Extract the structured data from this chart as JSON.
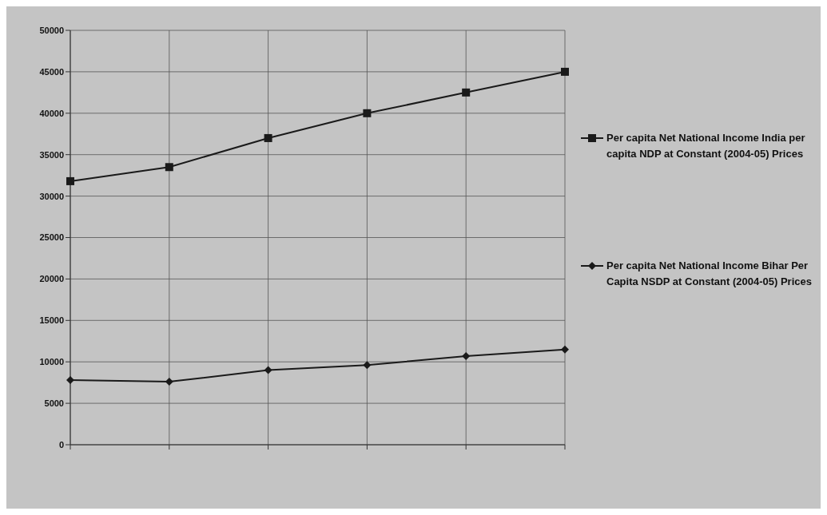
{
  "chart_data": {
    "type": "line",
    "categories": [
      null,
      null,
      null,
      null,
      null,
      null
    ],
    "series": [
      {
        "name": "Per capita Net National Income India per capita NDP at Constant (2004-05) Prices",
        "color": "#1a1a1a",
        "marker": "square",
        "values": [
          31800,
          33500,
          37000,
          40000,
          42500,
          45000
        ]
      },
      {
        "name": "Per capita Net National Income Bihar Per Capita NSDP at Constant (2004-05) Prices",
        "color": "#1a1a1a",
        "marker": "diamond",
        "values": [
          7800,
          7600,
          9000,
          9600,
          10700,
          11500
        ]
      }
    ],
    "ylim": [
      0,
      50000
    ],
    "yticks": [
      0,
      5000,
      10000,
      15000,
      20000,
      25000,
      30000,
      35000,
      40000,
      45000,
      50000
    ],
    "grid": true,
    "legend": "right",
    "line_style": "solid"
  }
}
